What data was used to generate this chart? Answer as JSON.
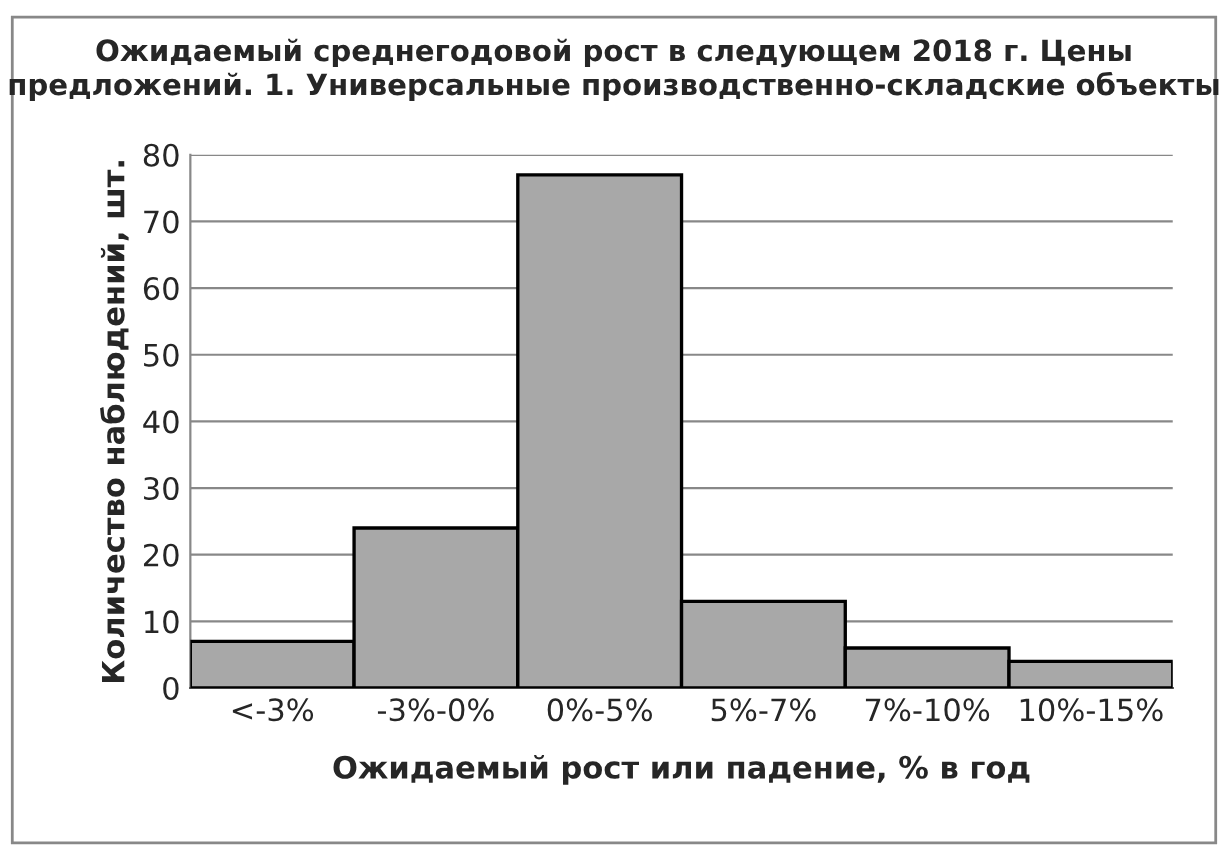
{
  "chart_data": {
    "type": "bar",
    "title": "Ожидаемый среднегодовой рост в следующем 2018 г. Цены предложений. 1. Универсальные производственно-складские объекты",
    "xlabel": "Ожидаемый рост или падение, % в год",
    "ylabel": "Количество наблюдений, шт.",
    "categories": [
      "<-3%",
      "-3%-0%",
      "0%-5%",
      "5%-7%",
      "7%-10%",
      "10%-15%"
    ],
    "series": [
      {
        "color": "#a8a8a8",
        "values": [
          7,
          24,
          77,
          13,
          6,
          4
        ]
      }
    ],
    "ylim": [
      0,
      80
    ],
    "yticks": [
      0,
      10,
      20,
      30,
      40,
      50,
      60,
      70,
      80
    ],
    "grid": "y"
  }
}
